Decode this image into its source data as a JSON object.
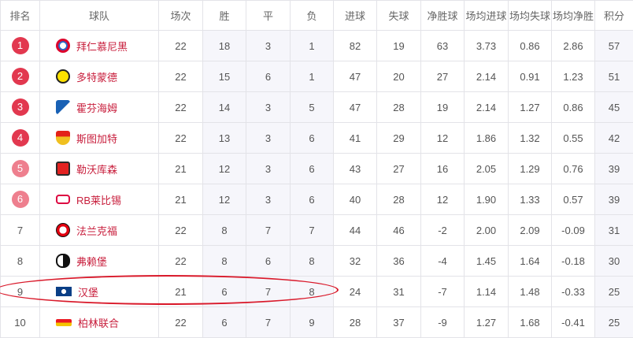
{
  "headers": [
    "排名",
    "球队",
    "场次",
    "胜",
    "平",
    "负",
    "进球",
    "失球",
    "净胜球",
    "场均进球",
    "场均失球",
    "场均净胜",
    "积分"
  ],
  "colors": {
    "badge_top4": "#e2384f",
    "badge_5_6": "#ee7f8e",
    "team_name": "#c81e3c",
    "shade": "#f6f6fb",
    "highlight": "#d9192a"
  },
  "rows": [
    {
      "rank": "1",
      "team": "拜仁慕尼黑",
      "logo": "bayern-logo-icon",
      "p": "22",
      "w": "18",
      "d": "3",
      "l": "1",
      "gf": "82",
      "ga": "19",
      "gd": "63",
      "avg_gf": "3.73",
      "avg_ga": "0.86",
      "avg_gd": "2.86",
      "pts": "57"
    },
    {
      "rank": "2",
      "team": "多特蒙德",
      "logo": "dortmund-logo-icon",
      "p": "22",
      "w": "15",
      "d": "6",
      "l": "1",
      "gf": "47",
      "ga": "20",
      "gd": "27",
      "avg_gf": "2.14",
      "avg_ga": "0.91",
      "avg_gd": "1.23",
      "pts": "51"
    },
    {
      "rank": "3",
      "team": "霍芬海姆",
      "logo": "hoffenheim-logo-icon",
      "p": "22",
      "w": "14",
      "d": "3",
      "l": "5",
      "gf": "47",
      "ga": "28",
      "gd": "19",
      "avg_gf": "2.14",
      "avg_ga": "1.27",
      "avg_gd": "0.86",
      "pts": "45"
    },
    {
      "rank": "4",
      "team": "斯图加特",
      "logo": "stuttgart-logo-icon",
      "p": "22",
      "w": "13",
      "d": "3",
      "l": "6",
      "gf": "41",
      "ga": "29",
      "gd": "12",
      "avg_gf": "1.86",
      "avg_ga": "1.32",
      "avg_gd": "0.55",
      "pts": "42"
    },
    {
      "rank": "5",
      "team": "勒沃库森",
      "logo": "leverkusen-logo-icon",
      "p": "21",
      "w": "12",
      "d": "3",
      "l": "6",
      "gf": "43",
      "ga": "27",
      "gd": "16",
      "avg_gf": "2.05",
      "avg_ga": "1.29",
      "avg_gd": "0.76",
      "pts": "39"
    },
    {
      "rank": "6",
      "team": "RB莱比锡",
      "logo": "leipzig-logo-icon",
      "p": "21",
      "w": "12",
      "d": "3",
      "l": "6",
      "gf": "40",
      "ga": "28",
      "gd": "12",
      "avg_gf": "1.90",
      "avg_ga": "1.33",
      "avg_gd": "0.57",
      "pts": "39"
    },
    {
      "rank": "7",
      "team": "法兰克福",
      "logo": "frankfurt-logo-icon",
      "p": "22",
      "w": "8",
      "d": "7",
      "l": "7",
      "gf": "44",
      "ga": "46",
      "gd": "-2",
      "avg_gf": "2.00",
      "avg_ga": "2.09",
      "avg_gd": "-0.09",
      "pts": "31"
    },
    {
      "rank": "8",
      "team": "弗赖堡",
      "logo": "freiburg-logo-icon",
      "p": "22",
      "w": "8",
      "d": "6",
      "l": "8",
      "gf": "32",
      "ga": "36",
      "gd": "-4",
      "avg_gf": "1.45",
      "avg_ga": "1.64",
      "avg_gd": "-0.18",
      "pts": "30"
    },
    {
      "rank": "9",
      "team": "汉堡",
      "logo": "hamburg-logo-icon",
      "p": "21",
      "w": "6",
      "d": "7",
      "l": "8",
      "gf": "24",
      "ga": "31",
      "gd": "-7",
      "avg_gf": "1.14",
      "avg_ga": "1.48",
      "avg_gd": "-0.33",
      "pts": "25",
      "highlighted": true
    },
    {
      "rank": "10",
      "team": "柏林联合",
      "logo": "union-berlin-logo-icon",
      "p": "22",
      "w": "6",
      "d": "7",
      "l": "9",
      "gf": "28",
      "ga": "37",
      "gd": "-9",
      "avg_gf": "1.27",
      "avg_ga": "1.68",
      "avg_gd": "-0.41",
      "pts": "25"
    }
  ]
}
